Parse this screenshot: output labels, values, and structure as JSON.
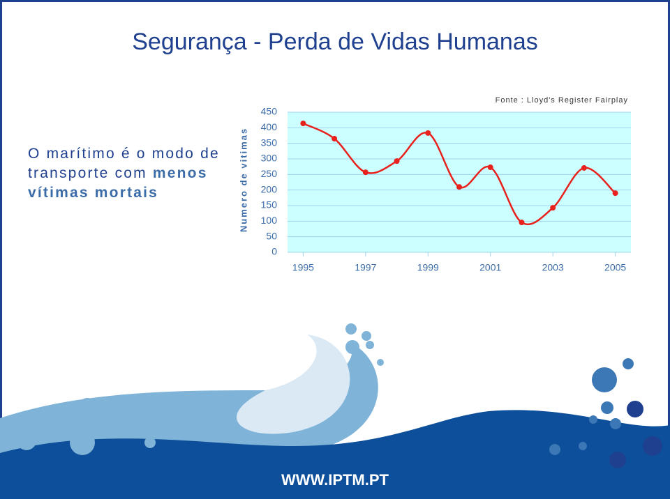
{
  "header": {
    "title": "Segurança - Perda de Vidas Humanas"
  },
  "body": {
    "text": "O marítimo é o modo de transporte com",
    "emphasis": "menos vítimas mortais"
  },
  "source": "Fonte : Lloyd's Register Fairplay",
  "footer": {
    "url": "WWW.IPTM.PT"
  },
  "chart_data": {
    "type": "line",
    "y_label": "Numero de vitimas",
    "x": [
      1995,
      1996,
      1997,
      1998,
      1999,
      2000,
      2001,
      2002,
      2003,
      2004,
      2005
    ],
    "values": [
      414,
      365,
      257,
      293,
      383,
      210,
      273,
      96,
      143,
      271,
      190
    ],
    "color": "#e8211c",
    "xlim": [
      1994.5,
      2005.5
    ],
    "xticks": [
      1995,
      1997,
      1999,
      2001,
      2003,
      2005
    ],
    "ylim": [
      0,
      450
    ],
    "yticks": [
      0,
      50,
      100,
      150,
      200,
      250,
      300,
      350,
      400,
      450
    ],
    "grid": true
  }
}
